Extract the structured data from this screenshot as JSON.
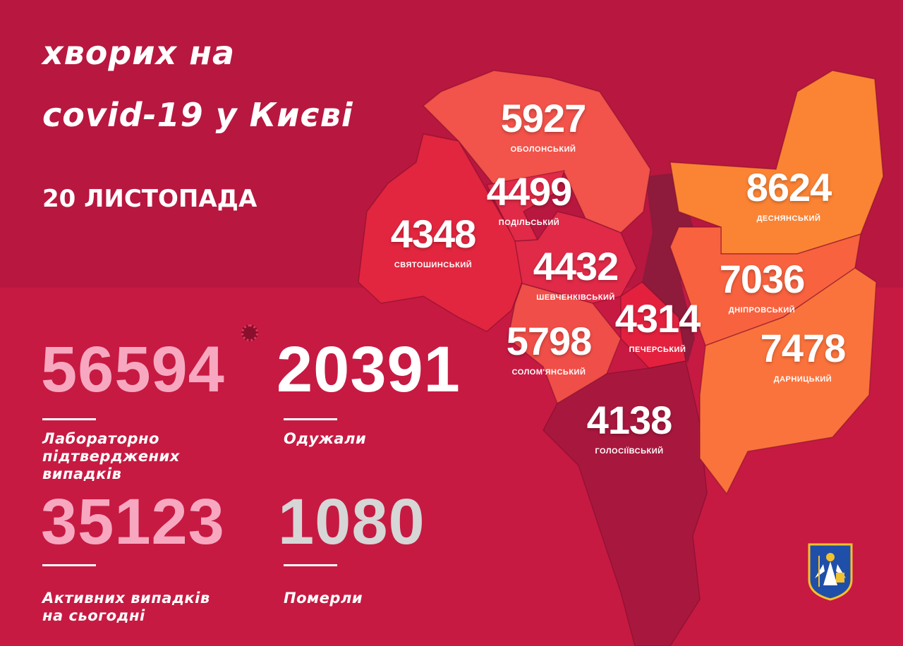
{
  "header": {
    "title_line1": "хворих на",
    "title_line2": "covid-19 у Києві",
    "date": "20 ЛИСТОПАДА"
  },
  "stats": [
    {
      "value": "56594",
      "label_lines": [
        "Лабораторно",
        "підтверджених",
        "випадків"
      ],
      "color": "#f7a8c0"
    },
    {
      "value": "20391",
      "label_lines": [
        "Одужали"
      ],
      "color": "#ffffff"
    },
    {
      "value": "35123",
      "label_lines": [
        "Активних випадків",
        "на сьогодні"
      ],
      "color": "#f7a8c0"
    },
    {
      "value": "1080",
      "label_lines": [
        "Померли"
      ],
      "color": "#d6d6d6"
    }
  ],
  "districts": [
    {
      "name": "ОБОЛОНСЬКИЙ",
      "value": "5927",
      "color": "#f2534a"
    },
    {
      "name": "ПОДІЛЬСЬКИЙ",
      "value": "4499",
      "color": "#e02a48"
    },
    {
      "name": "СВЯТОШИНСЬКИЙ",
      "value": "4348",
      "color": "#e2263f"
    },
    {
      "name": "ШЕВЧЕНКІВСЬКИЙ",
      "value": "4432",
      "color": "#e02a48"
    },
    {
      "name": "ПЕЧЕРСЬКИЙ",
      "value": "4314",
      "color": "#e3213f"
    },
    {
      "name": "СОЛОМ'ЯНСЬКИЙ",
      "value": "5798",
      "color": "#f04e48"
    },
    {
      "name": "ГОЛОСІЇВСЬКИЙ",
      "value": "4138",
      "color": "#a8183e"
    },
    {
      "name": "ДЕСНЯНСЬКИЙ",
      "value": "8624",
      "color": "#fb8334"
    },
    {
      "name": "ДНІПРОВСЬКИЙ",
      "value": "7036",
      "color": "#f8623f"
    },
    {
      "name": "ДАРНИЦЬКИЙ",
      "value": "7478",
      "color": "#fb733c"
    }
  ],
  "river_color": "#8e1a3c",
  "icons": {
    "virus": "virus-icon",
    "emblem": "kyiv-coat-of-arms"
  }
}
